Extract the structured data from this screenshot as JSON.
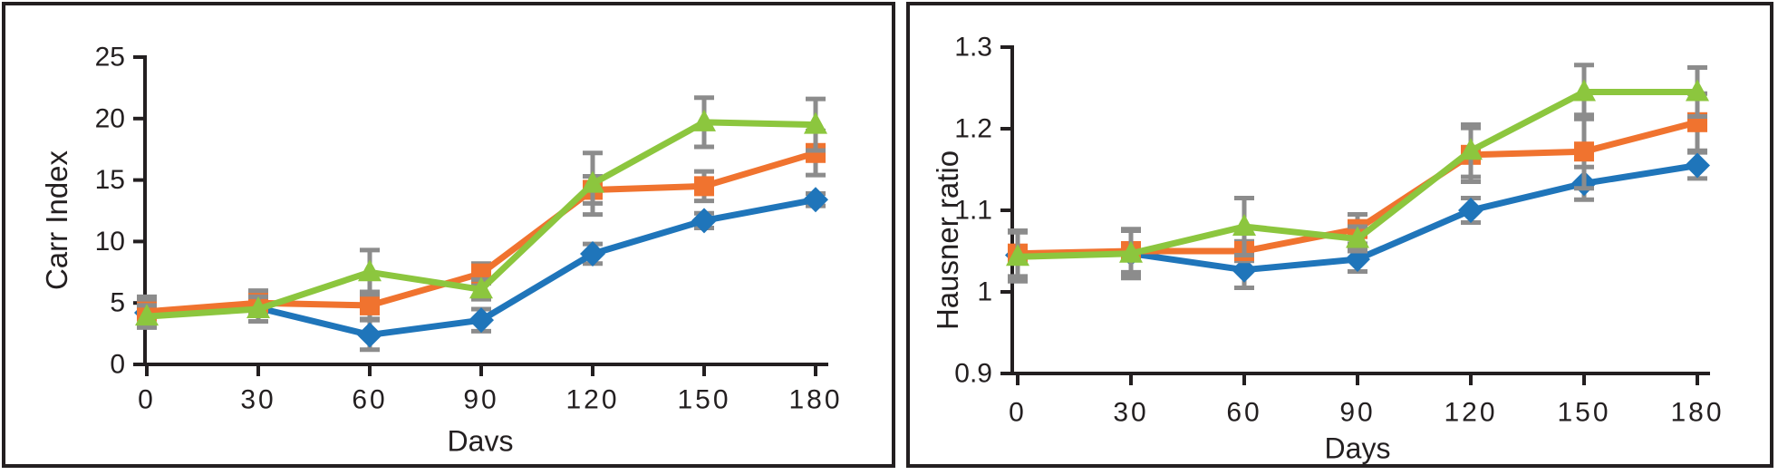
{
  "figure": {
    "background": "#ffffff",
    "frame_color": "#231F20",
    "text_color": "#231F20",
    "error_bar_color": "#8C8C8C"
  },
  "chart_data": [
    {
      "type": "line",
      "title": "",
      "xlabel": "Davs",
      "ylabel": "Carr Index",
      "x": [
        0,
        30,
        60,
        90,
        120,
        150,
        180
      ],
      "xtick_labels": [
        "0",
        "30",
        "60",
        "90",
        "120",
        "150",
        "180"
      ],
      "ylim": [
        0,
        25
      ],
      "yticks": [
        0,
        5,
        10,
        15,
        20,
        25
      ],
      "ytick_labels": [
        "0",
        "5",
        "10",
        "15",
        "20",
        "25"
      ],
      "grid": false,
      "legend_position": "none",
      "error_bar_color": "#8C8C8C",
      "axis_color": "#231F20",
      "series": [
        {
          "name": "blue-diamond",
          "marker": "diamond",
          "color": "#1F75BA",
          "values": [
            4.2,
            4.6,
            2.4,
            3.6,
            9.0,
            11.7,
            13.4
          ],
          "error": [
            1.0,
            1.1,
            1.2,
            0.9,
            0.8,
            0.6,
            0.5
          ]
        },
        {
          "name": "orange-square",
          "marker": "square",
          "color": "#F0732F",
          "values": [
            4.3,
            5.0,
            4.8,
            7.4,
            14.2,
            14.5,
            17.2
          ],
          "error": [
            1.2,
            1.0,
            1.1,
            0.8,
            1.1,
            1.2,
            1.8
          ]
        },
        {
          "name": "green-triangle",
          "marker": "triangle",
          "color": "#8CC63E",
          "values": [
            3.9,
            4.5,
            7.5,
            6.1,
            14.7,
            19.7,
            19.5
          ],
          "error": [
            0.9,
            1.0,
            1.8,
            0.8,
            2.5,
            2.0,
            2.1
          ]
        }
      ]
    },
    {
      "type": "line",
      "title": "",
      "xlabel": "Days",
      "ylabel": "Hausner ratio",
      "x": [
        0,
        30,
        60,
        90,
        120,
        150,
        180
      ],
      "xtick_labels": [
        "0",
        "30",
        "60",
        "90",
        "120",
        "150",
        "180"
      ],
      "ylim": [
        0.9,
        1.3
      ],
      "yticks": [
        0.9,
        1.0,
        1.1,
        1.2,
        1.3
      ],
      "ytick_labels": [
        "0.9",
        "1",
        "1.1",
        "1.2",
        "1.3"
      ],
      "grid": false,
      "legend_position": "none",
      "error_bar_color": "#8C8C8C",
      "axis_color": "#231F20",
      "series": [
        {
          "name": "blue-diamond",
          "marker": "diamond",
          "color": "#1F75BA",
          "values": [
            1.045,
            1.047,
            1.027,
            1.04,
            1.1,
            1.133,
            1.155
          ],
          "error": [
            0.03,
            0.03,
            0.022,
            0.015,
            0.015,
            0.02,
            0.016
          ]
        },
        {
          "name": "orange-square",
          "marker": "square",
          "color": "#F0732F",
          "values": [
            1.047,
            1.05,
            1.05,
            1.077,
            1.168,
            1.172,
            1.208
          ],
          "error": [
            0.028,
            0.026,
            0.012,
            0.018,
            0.033,
            0.045,
            0.035
          ]
        },
        {
          "name": "green-triangle",
          "marker": "triangle",
          "color": "#8CC63E",
          "values": [
            1.043,
            1.047,
            1.08,
            1.065,
            1.173,
            1.245,
            1.245
          ],
          "error": [
            0.03,
            0.028,
            0.035,
            0.015,
            0.032,
            0.033,
            0.03
          ]
        }
      ]
    }
  ]
}
